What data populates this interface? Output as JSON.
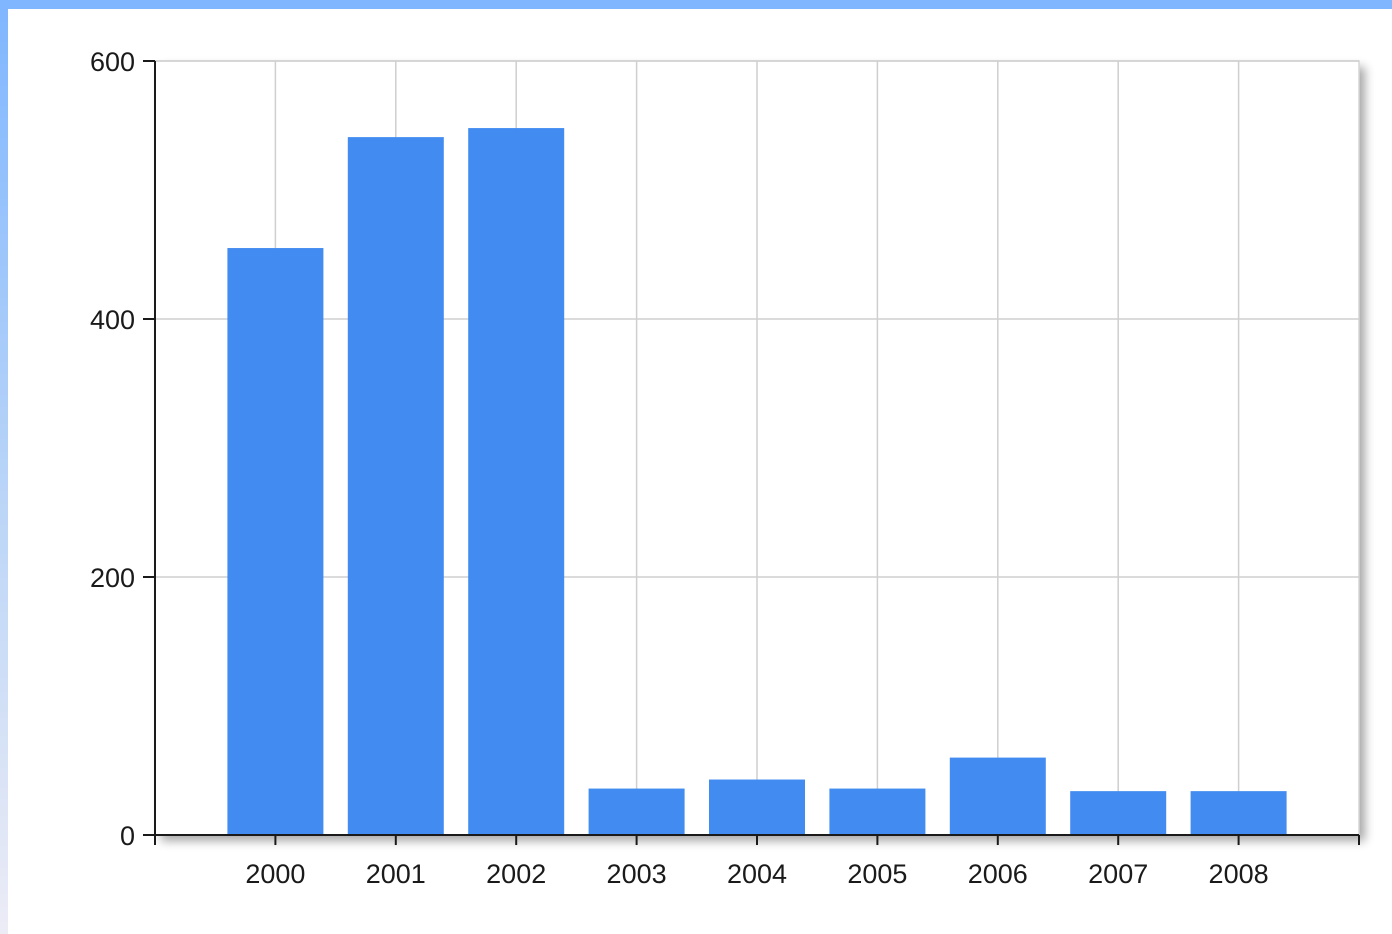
{
  "chart_data": {
    "type": "bar",
    "categories": [
      "2000",
      "2001",
      "2002",
      "2003",
      "2004",
      "2005",
      "2006",
      "2007",
      "2008"
    ],
    "values": [
      455,
      541,
      548,
      36,
      43,
      36,
      60,
      34,
      34
    ],
    "title": "",
    "xlabel": "",
    "ylabel": "",
    "ylim": [
      0,
      600
    ],
    "yticks": [
      0,
      200,
      400,
      600
    ],
    "grid": true,
    "bar_color": "#428bf0"
  }
}
